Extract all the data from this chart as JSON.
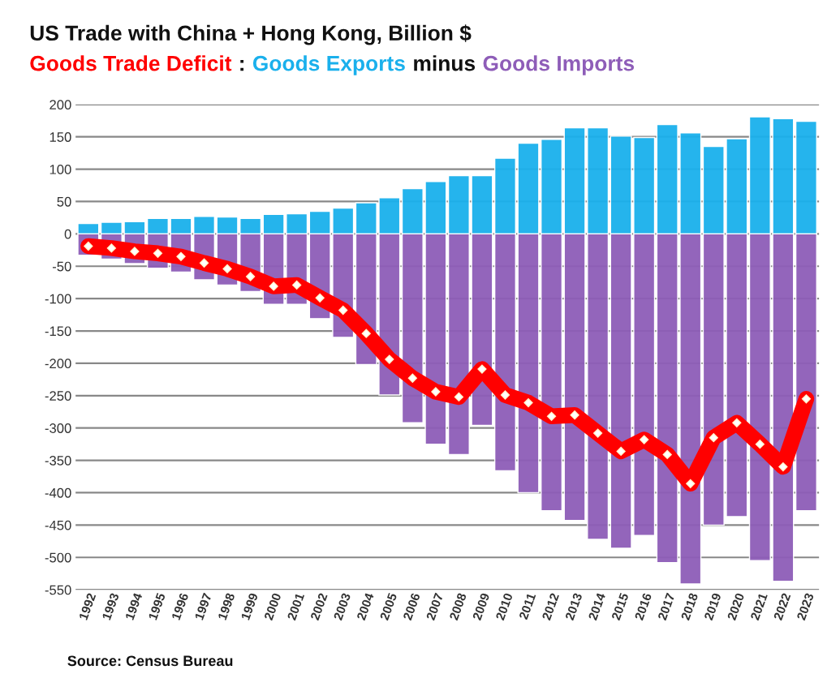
{
  "chart_data": {
    "type": "bar",
    "title": "US Trade with China + Hong Kong, Billion $",
    "categories": [
      "1992",
      "1993",
      "1994",
      "1995",
      "1996",
      "1997",
      "1998",
      "1999",
      "2000",
      "2001",
      "2002",
      "2003",
      "2004",
      "2005",
      "2006",
      "2007",
      "2008",
      "2009",
      "2010",
      "2011",
      "2012",
      "2013",
      "2014",
      "2015",
      "2016",
      "2017",
      "2018",
      "2019",
      "2020",
      "2021",
      "2022",
      "2023"
    ],
    "stacked": true,
    "series": [
      {
        "name": "Goods Exports",
        "color": "#1ab0ec",
        "values": [
          16,
          18,
          19,
          24,
          24,
          27,
          26,
          24,
          30,
          31,
          35,
          40,
          48,
          56,
          70,
          81,
          90,
          90,
          117,
          140,
          146,
          164,
          164,
          151,
          149,
          169,
          156,
          135,
          147,
          181,
          178,
          174
        ]
      },
      {
        "name": "Goods Imports",
        "color": "#8e5db8",
        "values": [
          -33,
          -39,
          -46,
          -53,
          -59,
          -71,
          -79,
          -89,
          -109,
          -109,
          -131,
          -160,
          -202,
          -249,
          -292,
          -325,
          -341,
          -296,
          -366,
          -400,
          -428,
          -443,
          -472,
          -486,
          -466,
          -508,
          -541,
          -450,
          -437,
          -505,
          -537,
          -428
        ]
      },
      {
        "name": "Goods Trade Deficit",
        "type": "line",
        "color": "#ff0000",
        "marker": "diamond",
        "line_style": "solid",
        "values": [
          -19,
          -22,
          -27,
          -30,
          -35,
          -45,
          -54,
          -66,
          -81,
          -79,
          -99,
          -118,
          -154,
          -194,
          -223,
          -244,
          -252,
          -209,
          -249,
          -261,
          -282,
          -280,
          -308,
          -336,
          -318,
          -341,
          -386,
          -315,
          -292,
          -325,
          -360,
          -255
        ]
      }
    ],
    "ylim": [
      -550,
      200
    ],
    "yticks": [
      200,
      150,
      100,
      50,
      0,
      -50,
      -100,
      -150,
      -200,
      -250,
      -300,
      -350,
      -400,
      -450,
      -500,
      -550
    ],
    "grid": "y",
    "legend": "top",
    "annotations": [
      ":",
      "minus",
      "Source: Census Bureau"
    ]
  }
}
